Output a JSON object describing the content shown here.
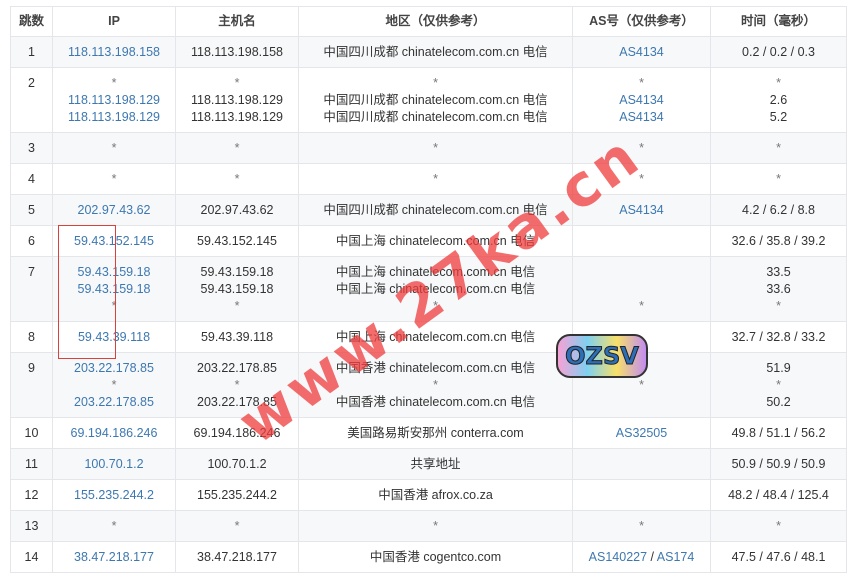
{
  "headers": [
    "跳数",
    "IP",
    "主机名",
    "地区（仅供参考）",
    "AS号（仅供参考）",
    "时间（毫秒）"
  ],
  "rows": [
    {
      "hop": "1",
      "ip": [
        "118.113.198.158"
      ],
      "host": [
        "118.113.198.158"
      ],
      "region": [
        "中国四川成都 chinatelecom.com.cn 电信"
      ],
      "as": [
        [
          "AS4134"
        ]
      ],
      "time": [
        "0.2 / 0.2 / 0.3"
      ]
    },
    {
      "hop": "2",
      "ip": [
        "*",
        "118.113.198.129",
        "118.113.198.129"
      ],
      "host": [
        "*",
        "118.113.198.129",
        "118.113.198.129"
      ],
      "region": [
        "*",
        "中国四川成都 chinatelecom.com.cn 电信",
        "中国四川成都 chinatelecom.com.cn 电信"
      ],
      "as": [
        [
          "*"
        ],
        [
          "AS4134"
        ],
        [
          "AS4134"
        ]
      ],
      "time": [
        "*",
        "2.6",
        "5.2"
      ]
    },
    {
      "hop": "3",
      "ip": [
        "*"
      ],
      "host": [
        "*"
      ],
      "region": [
        "*"
      ],
      "as": [
        [
          "*"
        ]
      ],
      "time": [
        "*"
      ]
    },
    {
      "hop": "4",
      "ip": [
        "*"
      ],
      "host": [
        "*"
      ],
      "region": [
        "*"
      ],
      "as": [
        [
          "*"
        ]
      ],
      "time": [
        "*"
      ]
    },
    {
      "hop": "5",
      "ip": [
        "202.97.43.62"
      ],
      "host": [
        "202.97.43.62"
      ],
      "region": [
        "中国四川成都 chinatelecom.com.cn 电信"
      ],
      "as": [
        [
          "AS4134"
        ]
      ],
      "time": [
        "4.2 / 6.2 / 8.8"
      ]
    },
    {
      "hop": "6",
      "ip": [
        "59.43.152.145"
      ],
      "host": [
        "59.43.152.145"
      ],
      "region": [
        "中国上海 chinatelecom.com.cn 电信"
      ],
      "as": [
        [
          ""
        ]
      ],
      "time": [
        "32.6 / 35.8 / 39.2"
      ]
    },
    {
      "hop": "7",
      "ip": [
        "59.43.159.18",
        "59.43.159.18",
        "*"
      ],
      "host": [
        "59.43.159.18",
        "59.43.159.18",
        "*"
      ],
      "region": [
        "中国上海 chinatelecom.com.cn 电信",
        "中国上海 chinatelecom.com.cn 电信",
        "*"
      ],
      "as": [
        [
          ""
        ],
        [
          ""
        ],
        [
          "*"
        ]
      ],
      "time": [
        "33.5",
        "33.6",
        "*"
      ]
    },
    {
      "hop": "8",
      "ip": [
        "59.43.39.118"
      ],
      "host": [
        "59.43.39.118"
      ],
      "region": [
        "中国上海 chinatelecom.com.cn 电信"
      ],
      "as": [
        [
          ""
        ]
      ],
      "time": [
        "32.7 / 32.8 / 33.2"
      ]
    },
    {
      "hop": "9",
      "ip": [
        "203.22.178.85",
        "*",
        "203.22.178.85"
      ],
      "host": [
        "203.22.178.85",
        "*",
        "203.22.178.85"
      ],
      "region": [
        "中国香港 chinatelecom.com.cn 电信",
        "*",
        "中国香港 chinatelecom.com.cn 电信"
      ],
      "as": [
        [
          ""
        ],
        [
          "*"
        ],
        [
          ""
        ]
      ],
      "time": [
        "51.9",
        "*",
        "50.2"
      ]
    },
    {
      "hop": "10",
      "ip": [
        "69.194.186.246"
      ],
      "host": [
        "69.194.186.246"
      ],
      "region": [
        "美国路易斯安那州 conterra.com"
      ],
      "as": [
        [
          "AS32505"
        ]
      ],
      "time": [
        "49.8 / 51.1 / 56.2"
      ]
    },
    {
      "hop": "11",
      "ip": [
        "100.70.1.2"
      ],
      "host": [
        "100.70.1.2"
      ],
      "region": [
        "共享地址"
      ],
      "as": [
        [
          ""
        ]
      ],
      "time": [
        "50.9 / 50.9 / 50.9"
      ]
    },
    {
      "hop": "12",
      "ip": [
        "155.235.244.2"
      ],
      "host": [
        "155.235.244.2"
      ],
      "region": [
        "中国香港 afrox.co.za"
      ],
      "as": [
        [
          ""
        ]
      ],
      "time": [
        "48.2 / 48.4 / 125.4"
      ]
    },
    {
      "hop": "13",
      "ip": [
        "*"
      ],
      "host": [
        "*"
      ],
      "region": [
        "*"
      ],
      "as": [
        [
          "*"
        ]
      ],
      "time": [
        "*"
      ]
    },
    {
      "hop": "14",
      "ip": [
        "38.47.218.177"
      ],
      "host": [
        "38.47.218.177"
      ],
      "region": [
        "中国香港 cogentco.com"
      ],
      "as": [
        [
          "AS140227",
          "AS174"
        ]
      ],
      "time": [
        "47.5 / 47.6 / 48.1"
      ]
    }
  ],
  "watermark": "www.27ka.cn",
  "sticker": "OZSV",
  "colors": {
    "link": "#3d78b0",
    "row_alt": "#f7f8fa",
    "watermark": "#f03c3c"
  }
}
